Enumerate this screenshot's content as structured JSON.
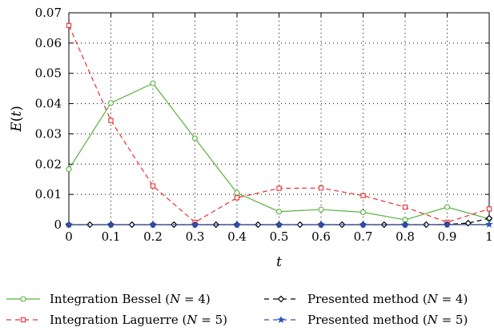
{
  "chart_data": {
    "type": "line",
    "title": "",
    "xlabel": "t",
    "ylabel": "E(t)",
    "xlim": [
      0,
      1
    ],
    "ylim": [
      0,
      0.07
    ],
    "grid": true,
    "grid_style": "dotted",
    "x_ticks": [
      "0",
      "0.1",
      "0.2",
      "0.3",
      "0.4",
      "0.5",
      "0.6",
      "0.7",
      "0.8",
      "0.9",
      "1"
    ],
    "y_ticks": [
      "0",
      "0.01",
      "0.02",
      "0.03",
      "0.04",
      "0.05",
      "0.06",
      "0.07"
    ],
    "legend_position": "bottom",
    "series": [
      {
        "name": "Integration Bessel (N = 4)",
        "color": "#55b33b",
        "line": "solid",
        "marker": "circle",
        "x": [
          0,
          0.1,
          0.2,
          0.3,
          0.4,
          0.5,
          0.6,
          0.7,
          0.8,
          0.9,
          1
        ],
        "values": [
          0.0183,
          0.0402,
          0.0467,
          0.0285,
          0.0105,
          0.0043,
          0.005,
          0.0041,
          0.0016,
          0.0058,
          0.0019
        ]
      },
      {
        "name": "Integration Laguerre (N = 5)",
        "color": "#e8312f",
        "line": "dashed",
        "marker": "square",
        "x": [
          0,
          0.1,
          0.2,
          0.3,
          0.4,
          0.5,
          0.6,
          0.7,
          0.8,
          0.9,
          1
        ],
        "values": [
          0.0658,
          0.0344,
          0.0128,
          0.0008,
          0.0089,
          0.012,
          0.0121,
          0.0096,
          0.0058,
          0.0008,
          0.0052
        ]
      },
      {
        "name": "Presented method (N = 4)",
        "color": "#000000",
        "line": "dashed",
        "marker": "diamond",
        "x": [
          0,
          0.05,
          0.1,
          0.15,
          0.2,
          0.25,
          0.3,
          0.35,
          0.4,
          0.45,
          0.5,
          0.55,
          0.6,
          0.65,
          0.7,
          0.75,
          0.8,
          0.85,
          0.9,
          0.95,
          1
        ],
        "values": [
          0,
          0,
          0,
          0,
          0,
          0,
          0,
          0,
          0,
          0,
          0,
          0,
          0,
          0,
          0,
          0,
          0,
          0,
          0.0001,
          0.0005,
          0.0021
        ]
      },
      {
        "name": "Presented method (N = 5)",
        "color": "#2a4fbf",
        "line": "dashed",
        "marker": "star",
        "x": [
          0,
          0.1,
          0.2,
          0.3,
          0.4,
          0.5,
          0.6,
          0.7,
          0.8,
          0.9,
          1
        ],
        "values": [
          0,
          0,
          0,
          0,
          0,
          0,
          0,
          0,
          0,
          0,
          0.0001
        ]
      }
    ],
    "legend": [
      {
        "prefix": "Integration Bessel (",
        "var": "N",
        "suffix": " = 4)"
      },
      {
        "prefix": "Presented method (",
        "var": "N",
        "suffix": " = 4)"
      },
      {
        "prefix": "Integration Laguerre (",
        "var": "N",
        "suffix": " = 5)"
      },
      {
        "prefix": "Presented method (",
        "var": "N",
        "suffix": " = 5)"
      }
    ]
  }
}
